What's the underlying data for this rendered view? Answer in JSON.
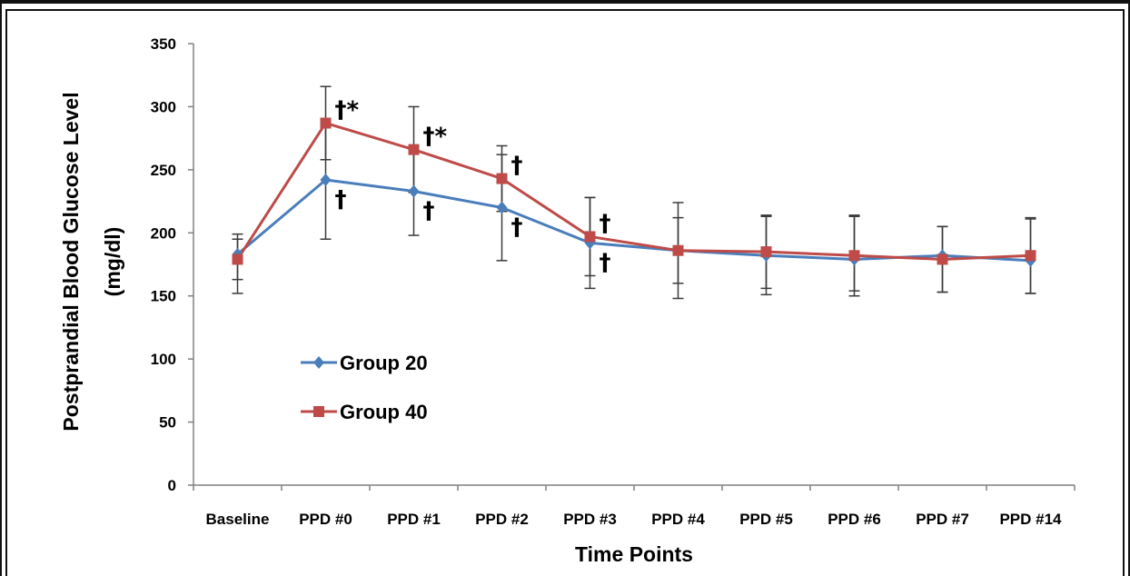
{
  "chart_data": {
    "type": "line",
    "xlabel": "Time Points",
    "ylabel": [
      "Postprandial Blood Glucose Level",
      "(mg/dl)"
    ],
    "ylim": [
      0,
      350
    ],
    "yticks": [
      0,
      50,
      100,
      150,
      200,
      250,
      300,
      350
    ],
    "categories": [
      "Baseline",
      "PPD #0",
      "PPD #1",
      "PPD #2",
      "PPD #3",
      "PPD #4",
      "PPD #5",
      "PPD #6",
      "PPD #7",
      "PPD #14"
    ],
    "grid": false,
    "legend_position": "left-middle",
    "series": [
      {
        "name": "Group 20",
        "color": "#4a7ebb",
        "marker": "diamond",
        "values": [
          183,
          242,
          233,
          220,
          192,
          186,
          182,
          179,
          182,
          178
        ],
        "error_low": [
          152,
          195,
          198,
          178,
          156,
          148,
          151,
          154,
          153,
          152
        ],
        "error_high": [
          199,
          289,
          268,
          262,
          228,
          224,
          213,
          213,
          205,
          211
        ]
      },
      {
        "name": "Group 40",
        "color": "#be4b48",
        "marker": "square",
        "values": [
          179,
          287,
          266,
          243,
          197,
          186,
          185,
          182,
          179,
          182
        ],
        "error_low": [
          163,
          258,
          232,
          217,
          166,
          160,
          156,
          150,
          153,
          152
        ],
        "error_high": [
          195,
          316,
          300,
          269,
          228,
          212,
          214,
          214,
          205,
          212
        ]
      }
    ],
    "annotations": [
      {
        "category": "PPD #0",
        "series": "Group 40",
        "text": "†*"
      },
      {
        "category": "PPD #1",
        "series": "Group 40",
        "text": "†*"
      },
      {
        "category": "PPD #2",
        "series": "Group 40",
        "text": "†"
      },
      {
        "category": "PPD #3",
        "series": "Group 40",
        "text": "†"
      },
      {
        "category": "PPD #0",
        "series": "Group 20",
        "text": "†"
      },
      {
        "category": "PPD #1",
        "series": "Group 20",
        "text": "†"
      },
      {
        "category": "PPD #2",
        "series": "Group 20",
        "text": "†"
      },
      {
        "category": "PPD #3",
        "series": "Group 20",
        "text": "†"
      }
    ]
  }
}
